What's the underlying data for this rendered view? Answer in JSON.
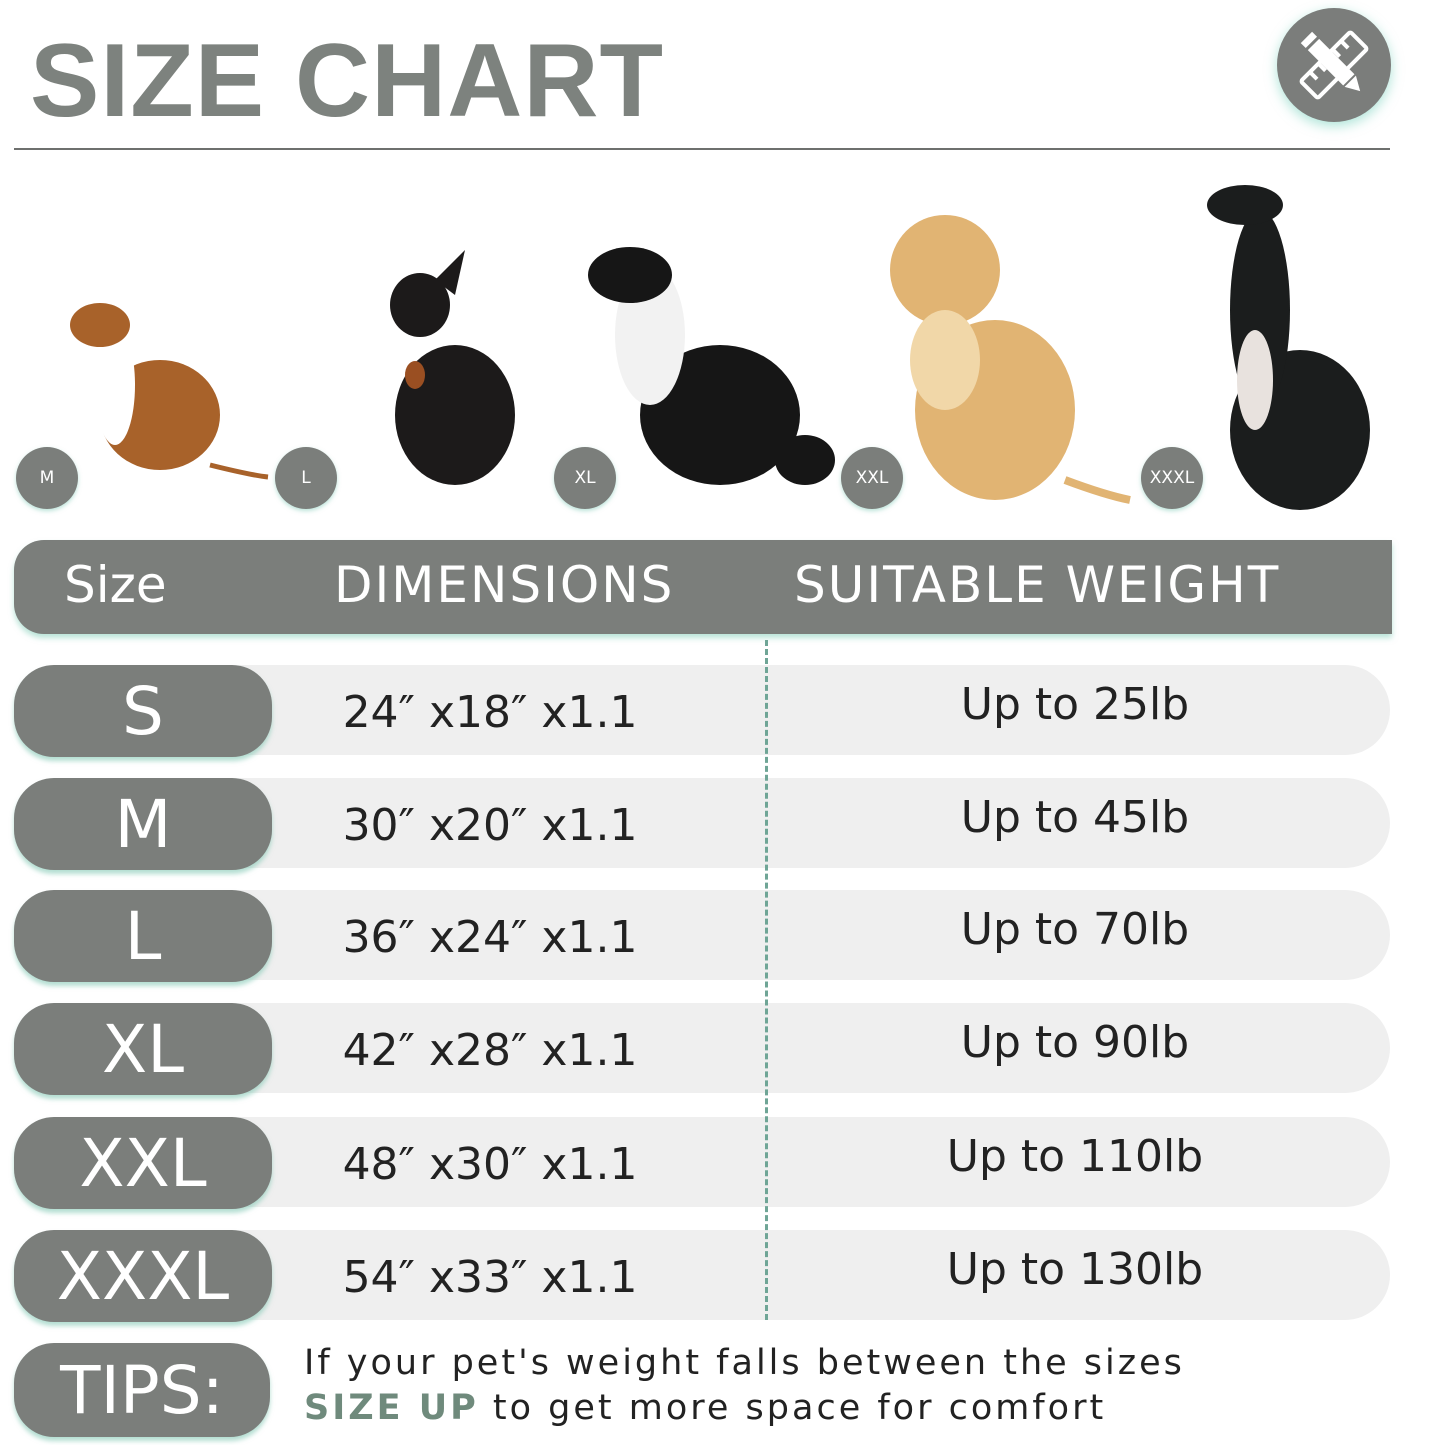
{
  "title": "SIZE CHART",
  "logo_icon": "ruler-pencil-icon",
  "dogs": [
    {
      "badge": "M",
      "colors": [
        "#a8622a",
        "#ffffff"
      ]
    },
    {
      "badge": "L",
      "colors": [
        "#1c1a1a",
        "#9a4f22"
      ]
    },
    {
      "badge": "XL",
      "colors": [
        "#161616",
        "#f2f2f2"
      ]
    },
    {
      "badge": "XXL",
      "colors": [
        "#e1b473",
        "#f1d7a8"
      ]
    },
    {
      "badge": "XXXL",
      "colors": [
        "#1b1d1d",
        "#e8e2de"
      ]
    }
  ],
  "table": {
    "headers": [
      "Size",
      "DIMENSIONS",
      "SUITABLE WEIGHT"
    ],
    "rows": [
      {
        "size": "S",
        "dimensions": "24″  x18″  x1.1",
        "weight": "Up to 25lb"
      },
      {
        "size": "M",
        "dimensions": "30″  x20″  x1.1",
        "weight": "Up to 45lb"
      },
      {
        "size": "L",
        "dimensions": "36″  x24″  x1.1",
        "weight": "Up to 70lb"
      },
      {
        "size": "XL",
        "dimensions": "42″  x28″  x1.1",
        "weight": "Up to 90lb"
      },
      {
        "size": "XXL",
        "dimensions": "48″  x30″  x1.1",
        "weight": "Up to 110lb"
      },
      {
        "size": "XXXL",
        "dimensions": "54″  x33″  x1.1",
        "weight": "Up to 130lb"
      }
    ]
  },
  "tips": {
    "label": "TIPS:",
    "line1": "If your pet's weight falls between the sizes",
    "highlight": "SIZE UP",
    "line2_rest": " to get more space for comfort"
  },
  "colors": {
    "accent_gray": "#7b7e7b",
    "shadow_green": "#8cd2be",
    "highlight": "#6f8a7c"
  }
}
